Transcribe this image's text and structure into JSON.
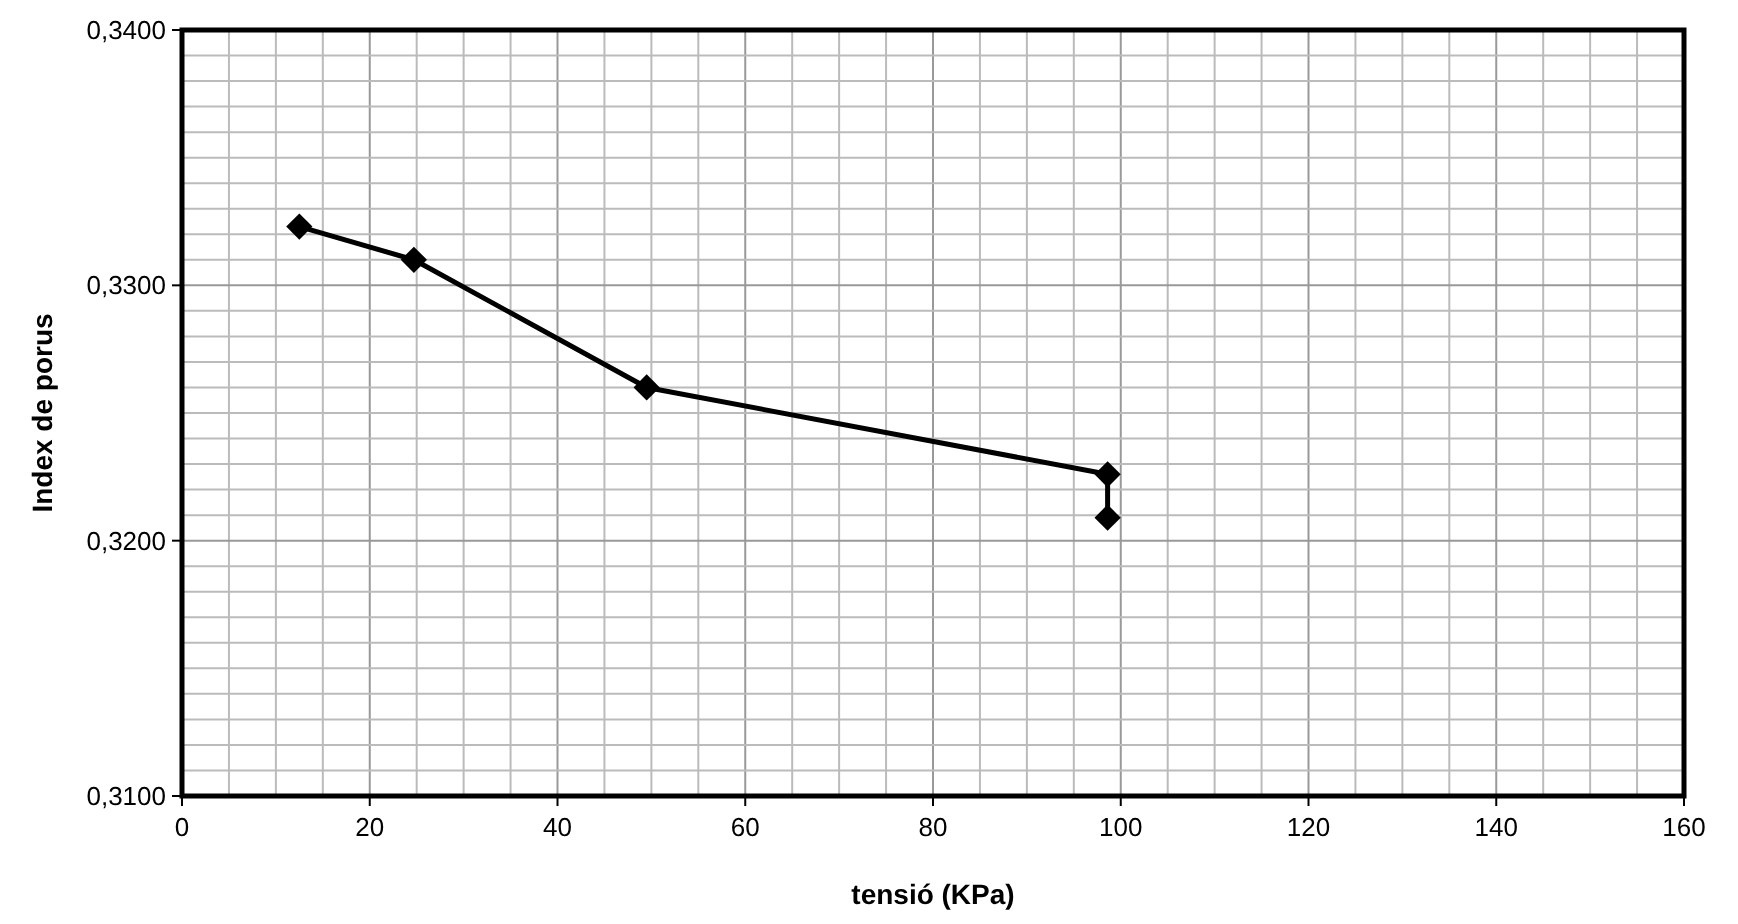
{
  "chart_data": {
    "type": "line",
    "xlabel": "tensió (KPa)",
    "ylabel": "Index de porus",
    "x": [
      12.5,
      24.7,
      49.5,
      98.6,
      98.6
    ],
    "series": [
      {
        "color": "#000000",
        "values": [
          0.3323,
          0.331,
          0.326,
          0.3226,
          0.3209
        ]
      }
    ],
    "xlim": [
      0,
      160
    ],
    "xticks": [
      0,
      {
        "value": 5,
        "label": null
      },
      {
        "value": 10,
        "label": null
      },
      {
        "value": 15,
        "label": null
      },
      20,
      {
        "value": 25,
        "label": null
      },
      {
        "value": 30,
        "label": null
      },
      {
        "value": 35,
        "label": null
      },
      40,
      {
        "value": 45,
        "label": null
      },
      {
        "value": 50,
        "label": null
      },
      {
        "value": 55,
        "label": null
      },
      60,
      {
        "value": 65,
        "label": null
      },
      {
        "value": 70,
        "label": null
      },
      {
        "value": 75,
        "label": null
      },
      80,
      {
        "value": 85,
        "label": null
      },
      {
        "value": 90,
        "label": null
      },
      {
        "value": 95,
        "label": null
      },
      100,
      {
        "value": 105,
        "label": null
      },
      {
        "value": 110,
        "label": null
      },
      {
        "value": 115,
        "label": null
      },
      120,
      {
        "value": 125,
        "label": null
      },
      {
        "value": 130,
        "label": null
      },
      {
        "value": 135,
        "label": null
      },
      140,
      {
        "value": 145,
        "label": null
      },
      {
        "value": 150,
        "label": null
      },
      {
        "value": 155,
        "label": null
      },
      160
    ],
    "ylim": [
      0.31,
      0.34
    ],
    "yticks": [
      {
        "value": 0.31,
        "label": "0,3100"
      },
      {
        "value": 0.311,
        "label": null
      },
      {
        "value": 0.312,
        "label": null
      },
      {
        "value": 0.313,
        "label": null
      },
      {
        "value": 0.314,
        "label": null
      },
      {
        "value": 0.315,
        "label": null
      },
      {
        "value": 0.316,
        "label": null
      },
      {
        "value": 0.317,
        "label": null
      },
      {
        "value": 0.318,
        "label": null
      },
      {
        "value": 0.319,
        "label": null
      },
      {
        "value": 0.32,
        "label": "0,3200"
      },
      {
        "value": 0.321,
        "label": null
      },
      {
        "value": 0.322,
        "label": null
      },
      {
        "value": 0.323,
        "label": null
      },
      {
        "value": 0.324,
        "label": null
      },
      {
        "value": 0.325,
        "label": null
      },
      {
        "value": 0.326,
        "label": null
      },
      {
        "value": 0.327,
        "label": null
      },
      {
        "value": 0.328,
        "label": null
      },
      {
        "value": 0.329,
        "label": null
      },
      {
        "value": 0.33,
        "label": "0,3300"
      },
      {
        "value": 0.331,
        "label": null
      },
      {
        "value": 0.332,
        "label": null
      },
      {
        "value": 0.333,
        "label": null
      },
      {
        "value": 0.334,
        "label": null
      },
      {
        "value": 0.335,
        "label": null
      },
      {
        "value": 0.336,
        "label": null
      },
      {
        "value": 0.337,
        "label": null
      },
      {
        "value": 0.338,
        "label": null
      },
      {
        "value": 0.339,
        "label": null
      },
      {
        "value": 0.34,
        "label": "0,3400"
      }
    ],
    "grid": true,
    "marker": "diamond",
    "line_style": "solid"
  }
}
